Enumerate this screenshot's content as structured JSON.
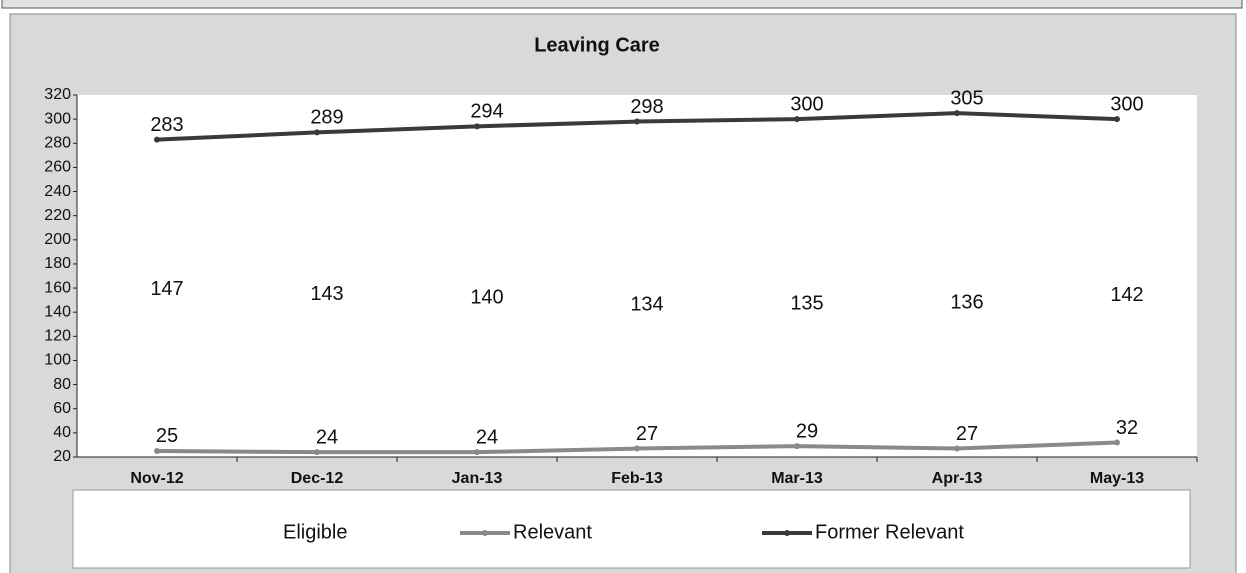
{
  "chart_data": {
    "type": "line",
    "title": "Leaving Care",
    "categories": [
      "Nov-12",
      "Dec-12",
      "Jan-13",
      "Feb-13",
      "Mar-13",
      "Apr-13",
      "May-13"
    ],
    "series": [
      {
        "name": "Eligible",
        "color": "#ffffff",
        "values": [
          147,
          143,
          140,
          134,
          135,
          136,
          142
        ]
      },
      {
        "name": "Relevant",
        "color": "#8a8a8a",
        "values": [
          25,
          24,
          24,
          27,
          29,
          27,
          32
        ]
      },
      {
        "name": "Former Relevant",
        "color": "#3a3a3a",
        "values": [
          283,
          289,
          294,
          298,
          300,
          305,
          300
        ]
      }
    ],
    "ylim": [
      20,
      320
    ],
    "yticks": [
      20,
      40,
      60,
      80,
      100,
      120,
      140,
      160,
      180,
      200,
      220,
      240,
      260,
      280,
      300,
      320
    ],
    "grid": false,
    "legend": "bottom"
  }
}
